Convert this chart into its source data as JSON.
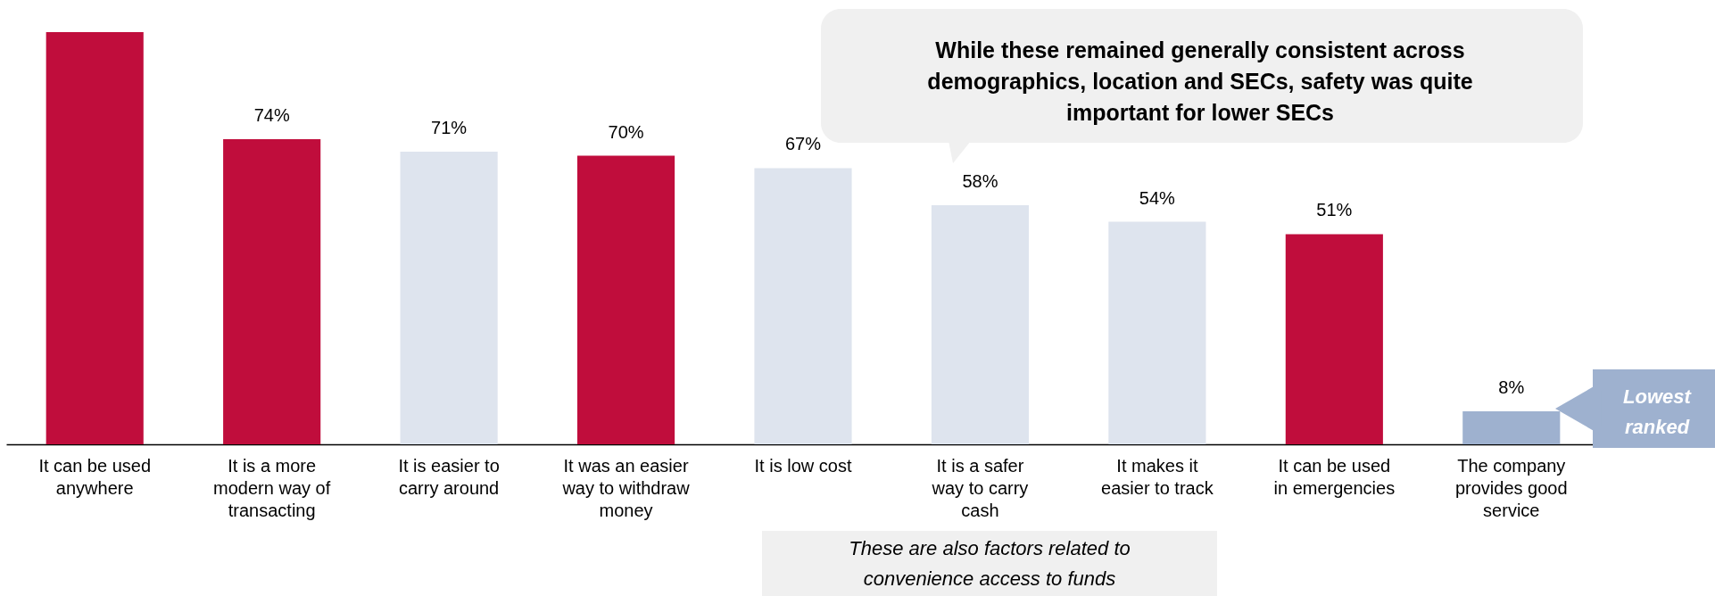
{
  "chart_data": {
    "type": "bar",
    "categories": [
      "It can be used anywhere",
      "It is a more modern way of transacting",
      "It is easier to carry around",
      "It was an easier way to withdraw money",
      "It is low cost",
      "It is a safer way to carry cash",
      "It makes it easier to track",
      "It can be used in emergencies",
      "The company provides good service"
    ],
    "values": [
      100,
      74,
      71,
      70,
      67,
      58,
      54,
      51,
      8
    ],
    "value_labels": [
      null,
      "74%",
      "71%",
      "70%",
      "67%",
      "58%",
      "54%",
      "51%",
      "8%"
    ],
    "colors": [
      "#c00d3c",
      "#c00d3c",
      "#dee4ee",
      "#c00d3c",
      "#dee4ee",
      "#dee4ee",
      "#dee4ee",
      "#c00d3c",
      "#9eb1cf"
    ],
    "annotations": [
      "While these remained generally consistent across demographics, location and SECs, safety was quite important for lower SECs",
      "These are also factors related to convenience access to funds",
      "Lowest ranked"
    ],
    "grid": false
  }
}
